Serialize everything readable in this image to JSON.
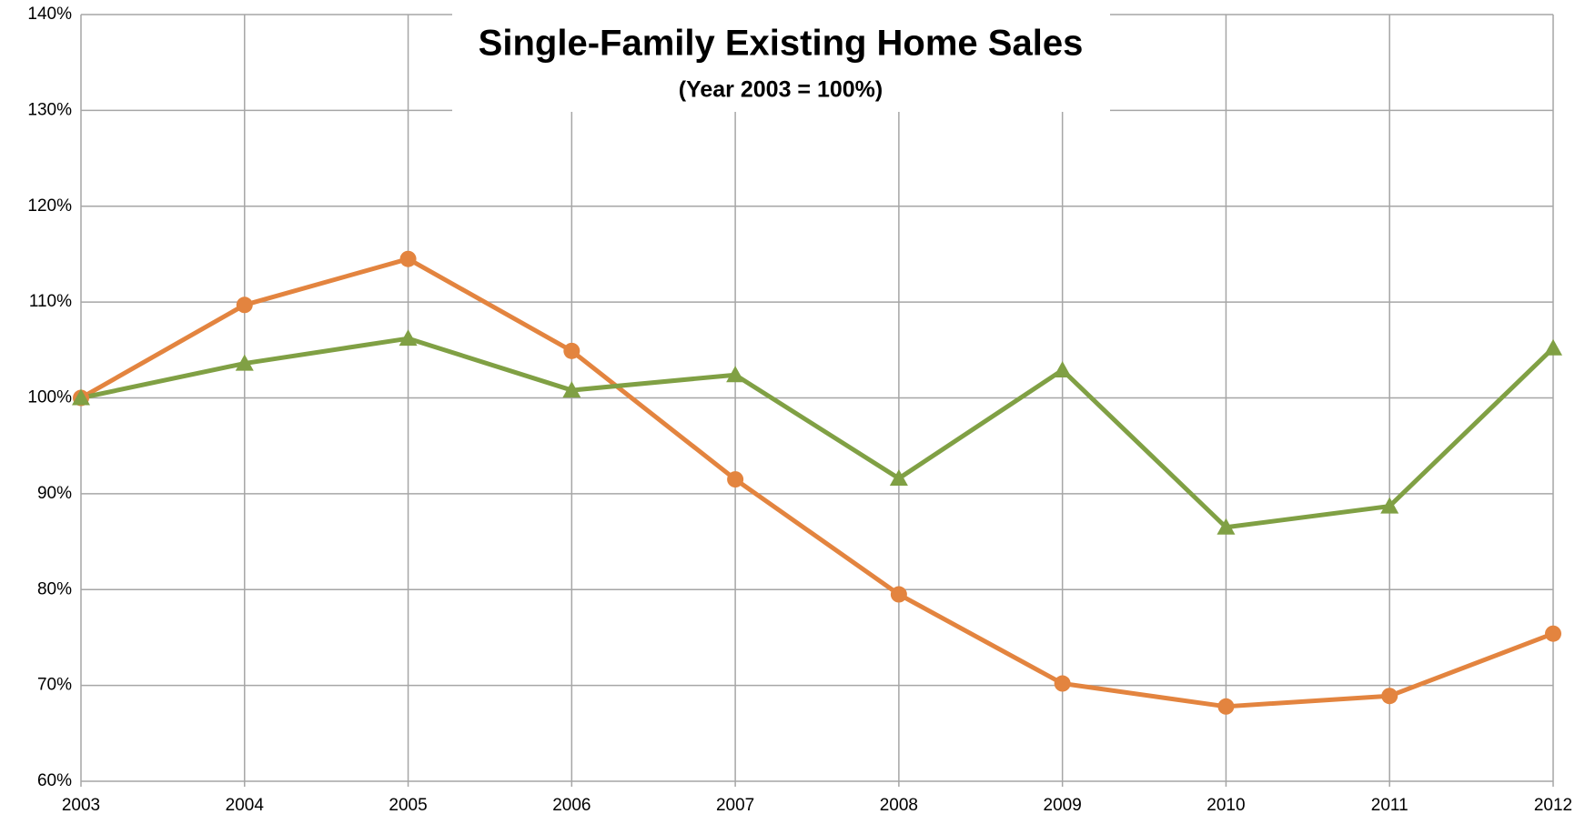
{
  "chart_data": {
    "type": "line",
    "title": "Single-Family Existing Home Sales",
    "subtitle": "(Year 2003 = 100%)",
    "categories": [
      "2003",
      "2004",
      "2005",
      "2006",
      "2007",
      "2008",
      "2009",
      "2010",
      "2011",
      "2012"
    ],
    "series": [
      {
        "color": "#e3843f",
        "marker": "circle",
        "values": [
          100,
          109.7,
          114.5,
          104.9,
          91.5,
          79.5,
          70.2,
          67.8,
          68.9,
          75.4
        ]
      },
      {
        "color": "#80a044",
        "marker": "triangle",
        "values": [
          100,
          103.6,
          106.2,
          100.8,
          102.4,
          91.6,
          102.9,
          86.5,
          88.7,
          105.2
        ]
      }
    ],
    "ylim": [
      60,
      140
    ],
    "yticks": [
      {
        "value": 60,
        "label": "60%"
      },
      {
        "value": 70,
        "label": "70%"
      },
      {
        "value": 80,
        "label": "80%"
      },
      {
        "value": 90,
        "label": "90%"
      },
      {
        "value": 100,
        "label": "100%"
      },
      {
        "value": 110,
        "label": "110%"
      },
      {
        "value": 120,
        "label": "120%"
      },
      {
        "value": 130,
        "label": "130%"
      },
      {
        "value": 140,
        "label": "140%"
      }
    ],
    "grid": true
  }
}
